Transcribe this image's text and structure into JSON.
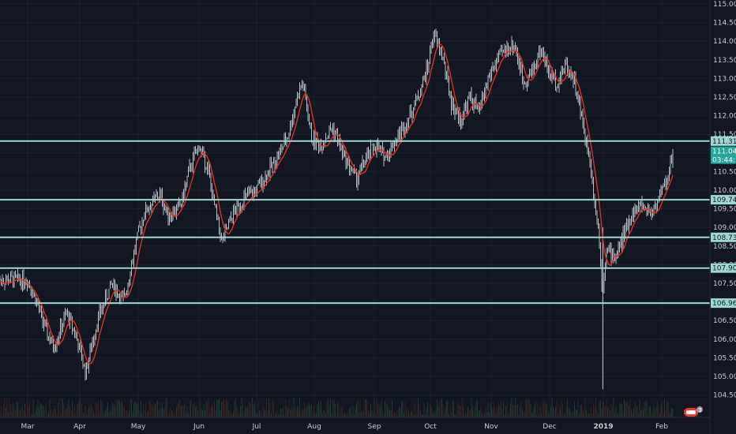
{
  "chart_data": {
    "type": "candlestick",
    "x_ticks": [
      "Mar",
      "Apr",
      "May",
      "Jun",
      "Jul",
      "Aug",
      "Sep",
      "Oct",
      "Nov",
      "Dec",
      "2019",
      "Feb"
    ],
    "y_ticks": [
      "115.000",
      "114.500",
      "114.000",
      "113.500",
      "113.000",
      "112.500",
      "112.000",
      "111.500",
      "111.000",
      "110.500",
      "110.000",
      "109.500",
      "109.000",
      "108.500",
      "108.000",
      "107.500",
      "107.000",
      "106.500",
      "106.000",
      "105.500",
      "105.000",
      "104.500"
    ],
    "ylim": [
      104.35,
      115.07
    ],
    "grid": true,
    "ma_color": "#e0301e",
    "bar_color": "#c9ccd3",
    "level_color": "#9fd6d2",
    "levels": [
      {
        "value": 111.318,
        "label": "111.318"
      },
      {
        "value": 109.744,
        "label": "109.744"
      },
      {
        "value": 108.734,
        "label": "108.734"
      },
      {
        "value": 107.909,
        "label": "107.909"
      },
      {
        "value": 106.968,
        "label": "106.968"
      }
    ],
    "last_price": {
      "value": 111.047,
      "label": "111.047",
      "countdown": "03:44:14",
      "color": "#26a69a"
    },
    "price_series": [
      [
        0,
        107.6
      ],
      [
        0.2,
        106.9
      ],
      [
        0.35,
        106.2
      ],
      [
        0.5,
        105.8
      ],
      [
        0.75,
        106.7
      ],
      [
        0.9,
        106.2
      ],
      [
        1.0,
        105.7
      ],
      [
        1.1,
        105.1
      ],
      [
        1.3,
        106.5
      ],
      [
        1.55,
        107.5
      ],
      [
        1.75,
        107.0
      ],
      [
        1.95,
        108.5
      ],
      [
        2.1,
        109.4
      ],
      [
        2.35,
        109.9
      ],
      [
        2.5,
        109.3
      ],
      [
        2.7,
        109.6
      ],
      [
        2.85,
        110.6
      ],
      [
        3.0,
        111.2
      ],
      [
        3.15,
        110.6
      ],
      [
        3.25,
        109.7
      ],
      [
        3.4,
        108.6
      ],
      [
        3.6,
        109.4
      ],
      [
        3.8,
        109.8
      ],
      [
        4.0,
        110.0
      ],
      [
        4.2,
        110.5
      ],
      [
        4.4,
        111.0
      ],
      [
        4.55,
        111.5
      ],
      [
        4.7,
        112.5
      ],
      [
        4.8,
        112.9
      ],
      [
        4.95,
        111.4
      ],
      [
        5.1,
        111.2
      ],
      [
        5.3,
        111.7
      ],
      [
        5.5,
        110.9
      ],
      [
        5.7,
        110.3
      ],
      [
        5.85,
        110.8
      ],
      [
        6.0,
        111.2
      ],
      [
        6.2,
        110.9
      ],
      [
        6.4,
        111.4
      ],
      [
        6.6,
        111.9
      ],
      [
        6.8,
        112.6
      ],
      [
        6.95,
        113.3
      ],
      [
        7.05,
        114.2
      ],
      [
        7.2,
        113.6
      ],
      [
        7.35,
        112.3
      ],
      [
        7.5,
        111.9
      ],
      [
        7.65,
        112.5
      ],
      [
        7.8,
        112.1
      ],
      [
        7.95,
        113.0
      ],
      [
        8.1,
        113.5
      ],
      [
        8.25,
        113.8
      ],
      [
        8.4,
        113.9
      ],
      [
        8.55,
        112.9
      ],
      [
        8.7,
        113.2
      ],
      [
        8.85,
        113.8
      ],
      [
        9.0,
        113.1
      ],
      [
        9.15,
        112.9
      ],
      [
        9.3,
        113.4
      ],
      [
        9.45,
        113.0
      ],
      [
        9.6,
        111.9
      ],
      [
        9.75,
        110.8
      ],
      [
        9.85,
        109.6
      ],
      [
        9.92,
        108.8
      ],
      [
        9.98,
        107.3
      ],
      [
        10.05,
        108.4
      ],
      [
        10.2,
        108.2
      ],
      [
        10.35,
        108.8
      ],
      [
        10.5,
        109.4
      ],
      [
        10.65,
        109.6
      ],
      [
        10.8,
        109.4
      ],
      [
        10.9,
        109.6
      ],
      [
        10.97,
        109.9
      ],
      [
        11.1,
        110.3
      ],
      [
        11.2,
        111.1
      ]
    ]
  }
}
